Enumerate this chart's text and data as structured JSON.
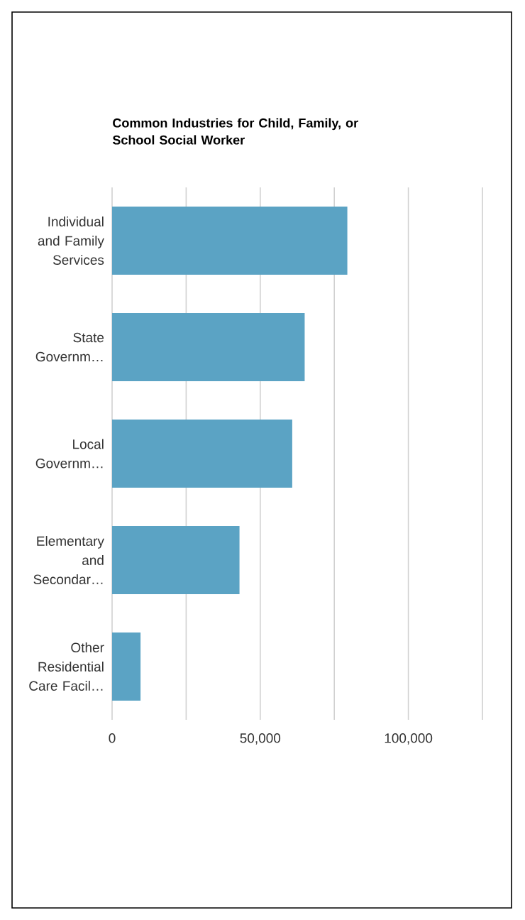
{
  "chart_data": {
    "type": "bar",
    "orientation": "horizontal",
    "title": "Common Industries for Child, Family, or School Social Worker",
    "categories": [
      "Individual and Family Services",
      "State Governm…",
      "Local Governm…",
      "Elementary and Secondar…",
      "Other Residential Care Facil…"
    ],
    "values": [
      79400,
      65000,
      60800,
      43000,
      9600
    ],
    "color": "#5ba3c4",
    "xlim": [
      0,
      125000
    ],
    "xticks": [
      0,
      {
        "value": 25000,
        "label": null
      },
      {
        "value": 50000,
        "label": "50,000"
      },
      {
        "value": 75000,
        "label": null
      },
      {
        "value": 100000,
        "label": "100,000"
      },
      {
        "value": 125000,
        "label": null
      }
    ],
    "grid": "x"
  }
}
